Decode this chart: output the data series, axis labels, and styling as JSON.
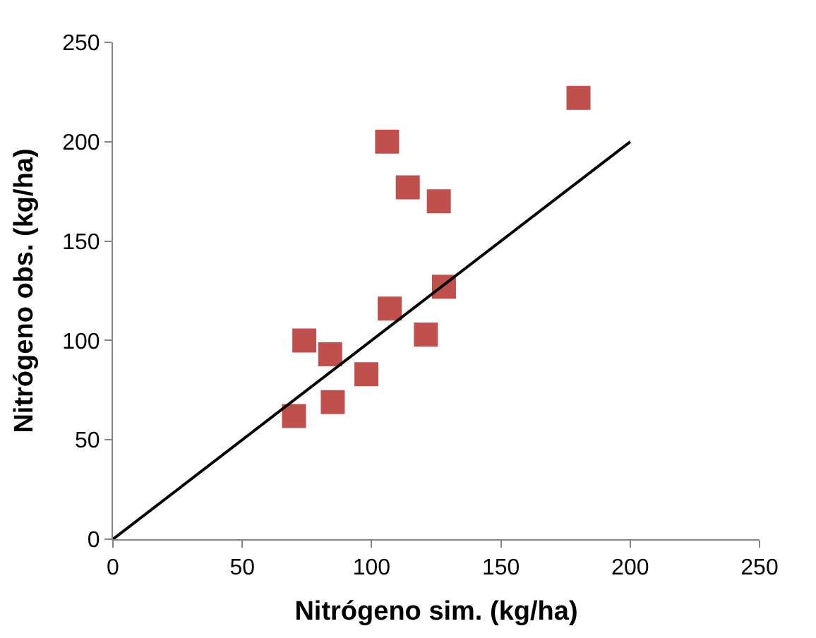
{
  "chart_data": {
    "type": "scatter",
    "xlabel": "Nitrógeno sim. (kg/ha)",
    "ylabel": "Nitrógeno obs. (kg/ha)",
    "xlim": [
      0,
      250
    ],
    "xticks": [
      0,
      50,
      100,
      150,
      200,
      250
    ],
    "ylim": [
      0,
      250
    ],
    "yticks": [
      0,
      50,
      100,
      150,
      200,
      250
    ],
    "series": [
      {
        "color": "#c0504d",
        "marker": "square",
        "x": [
          70,
          74,
          84,
          85,
          98,
          106,
          107,
          114,
          121,
          126,
          128,
          180
        ],
        "values": [
          62,
          100,
          93,
          69,
          83,
          200,
          116,
          177,
          103,
          170,
          127,
          222
        ]
      },
      {
        "type": "line",
        "color": "#000000",
        "x": [
          0,
          200
        ],
        "values": [
          0,
          200
        ],
        "line_style": "solid"
      }
    ]
  }
}
